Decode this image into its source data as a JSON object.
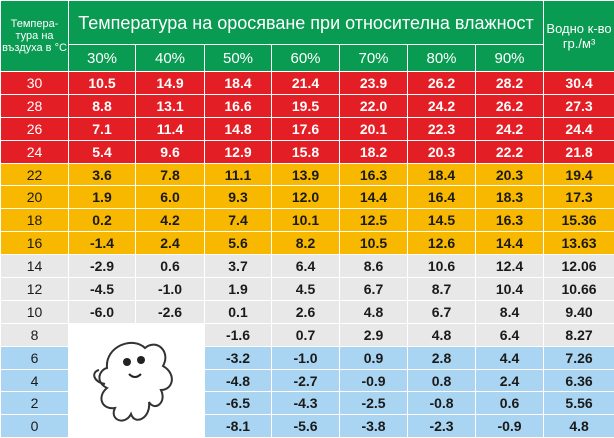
{
  "header": {
    "temp_label": "Темпера-тура на въздуха в °С",
    "main_title": "Температура на оросяване при относителна влажност",
    "water_label": "Водно к-во гр./м³",
    "humidity": [
      "30%",
      "40%",
      "50%",
      "60%",
      "70%",
      "80%",
      "90%"
    ]
  },
  "colors": {
    "header": "#0a9b52",
    "red": "#e41e25",
    "yellow": "#f8b800",
    "gray": "#e8e8e8",
    "blue": "#a9d5f2"
  },
  "rows": [
    {
      "t": "30",
      "v": [
        "10.5",
        "14.9",
        "18.4",
        "21.4",
        "23.9",
        "26.2",
        "28.2"
      ],
      "w": "30.4"
    },
    {
      "t": "28",
      "v": [
        "8.8",
        "13.1",
        "16.6",
        "19.5",
        "22.0",
        "24.2",
        "26.2"
      ],
      "w": "27.3"
    },
    {
      "t": "26",
      "v": [
        "7.1",
        "11.4",
        "14.8",
        "17.6",
        "20.1",
        "22.3",
        "24.2"
      ],
      "w": "24.4"
    },
    {
      "t": "24",
      "v": [
        "5.4",
        "9.6",
        "12.9",
        "15.8",
        "18.2",
        "20.3",
        "22.2"
      ],
      "w": "21.8"
    },
    {
      "t": "22",
      "v": [
        "3.6",
        "7.8",
        "11.1",
        "13.9",
        "16.3",
        "18.4",
        "20.3"
      ],
      "w": "19.4"
    },
    {
      "t": "20",
      "v": [
        "1.9",
        "6.0",
        "9.3",
        "12.0",
        "14.4",
        "16.4",
        "18.3"
      ],
      "w": "17.3"
    },
    {
      "t": "18",
      "v": [
        "0.2",
        "4.2",
        "7.4",
        "10.1",
        "12.5",
        "14.5",
        "16.3"
      ],
      "w": "15.36"
    },
    {
      "t": "16",
      "v": [
        "-1.4",
        "2.4",
        "5.6",
        "8.2",
        "10.5",
        "12.6",
        "14.4"
      ],
      "w": "13.63"
    },
    {
      "t": "14",
      "v": [
        "-2.9",
        "0.6",
        "3.7",
        "6.4",
        "8.6",
        "10.6",
        "12.4"
      ],
      "w": "12.06"
    },
    {
      "t": "12",
      "v": [
        "-4.5",
        "-1.0",
        "1.9",
        "4.5",
        "6.7",
        "8.7",
        "10.4"
      ],
      "w": "10.66"
    },
    {
      "t": "10",
      "v": [
        "-6.0",
        "-2.6",
        "0.1",
        "2.6",
        "4.8",
        "6.7",
        "8.4"
      ],
      "w": "9.40"
    },
    {
      "t": "8",
      "v": [
        "",
        "",
        "-1.6",
        "0.7",
        "2.9",
        "4.8",
        "6.4"
      ],
      "w": "8.27"
    },
    {
      "t": "6",
      "v": [
        "",
        "",
        "-3.2",
        "-1.0",
        "0.9",
        "2.8",
        "4.4"
      ],
      "w": "7.26"
    },
    {
      "t": "4",
      "v": [
        "",
        "",
        "-4.8",
        "-2.7",
        "-0.9",
        "0.8",
        "2.4"
      ],
      "w": "6.36"
    },
    {
      "t": "2",
      "v": [
        "",
        "",
        "-6.5",
        "-4.3",
        "-2.5",
        "-0.8",
        "0.6"
      ],
      "w": "5.56"
    },
    {
      "t": "0",
      "v": [
        "",
        "",
        "-8.1",
        "-5.6",
        "-3.8",
        "-2.3",
        "-0.9"
      ],
      "w": "4.8"
    }
  ]
}
